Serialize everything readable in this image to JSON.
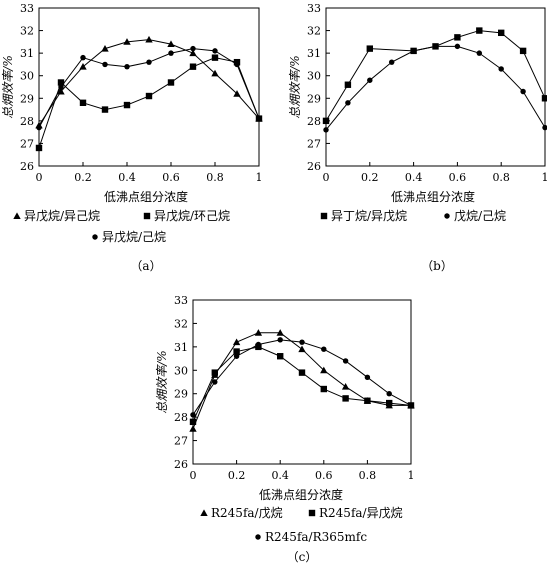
{
  "chart_data": [
    {
      "type": "line",
      "panel_label": "（a）",
      "xlabel": "低沸点组分浓度",
      "ylabel": "总㶲效率/%",
      "xlim": [
        0,
        1
      ],
      "ylim": [
        26,
        33
      ],
      "xticks": [
        0,
        0.2,
        0.4,
        0.6,
        0.8,
        1
      ],
      "yticks": [
        26,
        27,
        28,
        29,
        30,
        31,
        32,
        33
      ],
      "xtick_labels": [
        "0",
        "0.2",
        "0.4",
        "0.6",
        "0.8",
        "1"
      ],
      "ytick_labels": [
        "26",
        "27",
        "28",
        "29",
        "30",
        "31",
        "32",
        "33"
      ],
      "legend": "bottom",
      "series": [
        {
          "name": "异戊烷/异己烷",
          "marker": "triangle",
          "x": [
            0,
            0.1,
            0.2,
            0.3,
            0.4,
            0.5,
            0.6,
            0.7,
            0.8,
            0.9,
            1
          ],
          "y": [
            27.8,
            29.3,
            30.4,
            31.2,
            31.5,
            31.6,
            31.4,
            31.0,
            30.1,
            29.2,
            28.1
          ]
        },
        {
          "name": "异戊烷/环己烷",
          "marker": "square",
          "x": [
            0,
            0.1,
            0.2,
            0.3,
            0.4,
            0.5,
            0.6,
            0.7,
            0.8,
            0.9,
            1
          ],
          "y": [
            26.8,
            29.7,
            28.8,
            28.5,
            28.7,
            29.1,
            29.7,
            30.4,
            30.8,
            30.6,
            28.1
          ]
        },
        {
          "name": "异戊烷/己烷",
          "marker": "circle",
          "x": [
            0,
            0.1,
            0.2,
            0.3,
            0.4,
            0.5,
            0.6,
            0.7,
            0.8,
            0.9,
            1
          ],
          "y": [
            27.7,
            29.5,
            30.8,
            30.5,
            30.4,
            30.6,
            31.0,
            31.2,
            31.1,
            30.5,
            28.1
          ]
        }
      ]
    },
    {
      "type": "line",
      "panel_label": "（b）",
      "xlabel": "低沸点组分浓度",
      "ylabel": "总㶲效率/%",
      "xlim": [
        0,
        1
      ],
      "ylim": [
        26,
        33
      ],
      "xticks": [
        0,
        0.2,
        0.4,
        0.6,
        0.8,
        1
      ],
      "yticks": [
        26,
        27,
        28,
        29,
        30,
        31,
        32,
        33
      ],
      "xtick_labels": [
        "0",
        "0.2",
        "0.4",
        "0.6",
        "0.8",
        "1"
      ],
      "ytick_labels": [
        "26",
        "27",
        "28",
        "29",
        "30",
        "31",
        "32",
        "33"
      ],
      "legend": "bottom",
      "series": [
        {
          "name": "异丁烷/异戊烷",
          "marker": "square",
          "x": [
            0,
            0.1,
            0.2,
            0.4,
            0.5,
            0.6,
            0.7,
            0.8,
            0.9,
            1
          ],
          "y": [
            28.0,
            29.6,
            31.2,
            31.1,
            31.3,
            31.7,
            32.0,
            31.9,
            31.1,
            29.0
          ]
        },
        {
          "name": "戊烷/己烷",
          "marker": "circle",
          "x": [
            0,
            0.1,
            0.2,
            0.3,
            0.4,
            0.5,
            0.6,
            0.7,
            0.8,
            0.9,
            1
          ],
          "y": [
            27.6,
            28.8,
            29.8,
            30.6,
            31.1,
            31.3,
            31.3,
            31.0,
            30.3,
            29.3,
            27.7
          ]
        }
      ]
    },
    {
      "type": "line",
      "panel_label": "（c）",
      "xlabel": "低沸点组分浓度",
      "ylabel": "总㶲效率/%",
      "xlim": [
        0,
        1
      ],
      "ylim": [
        26,
        33
      ],
      "xticks": [
        0,
        0.2,
        0.4,
        0.6,
        0.8,
        1
      ],
      "yticks": [
        26,
        27,
        28,
        29,
        30,
        31,
        32,
        33
      ],
      "xtick_labels": [
        "0",
        "0.2",
        "0.4",
        "0.6",
        "0.8",
        "1"
      ],
      "ytick_labels": [
        "26",
        "27",
        "28",
        "29",
        "30",
        "31",
        "32",
        "33"
      ],
      "legend": "bottom",
      "series": [
        {
          "name": "R245fa/戊烷",
          "marker": "triangle",
          "x": [
            0,
            0.1,
            0.2,
            0.3,
            0.4,
            0.5,
            0.6,
            0.7,
            0.8,
            0.9,
            1
          ],
          "y": [
            27.5,
            29.8,
            31.2,
            31.6,
            31.6,
            30.9,
            30.0,
            29.3,
            28.7,
            28.5,
            28.5
          ]
        },
        {
          "name": "R245fa/异戊烷",
          "marker": "square",
          "x": [
            0,
            0.1,
            0.2,
            0.3,
            0.4,
            0.5,
            0.6,
            0.7,
            0.8,
            0.9,
            1
          ],
          "y": [
            27.8,
            29.9,
            30.8,
            31.0,
            30.6,
            29.9,
            29.2,
            28.8,
            28.7,
            28.6,
            28.5
          ]
        },
        {
          "name": "R245fa/R365mfc",
          "marker": "circle",
          "x": [
            0,
            0.1,
            0.2,
            0.3,
            0.4,
            0.5,
            0.6,
            0.7,
            0.8,
            0.9,
            1
          ],
          "y": [
            28.1,
            29.5,
            30.6,
            31.1,
            31.3,
            31.2,
            30.9,
            30.4,
            29.7,
            29.0,
            28.5
          ]
        }
      ]
    }
  ]
}
